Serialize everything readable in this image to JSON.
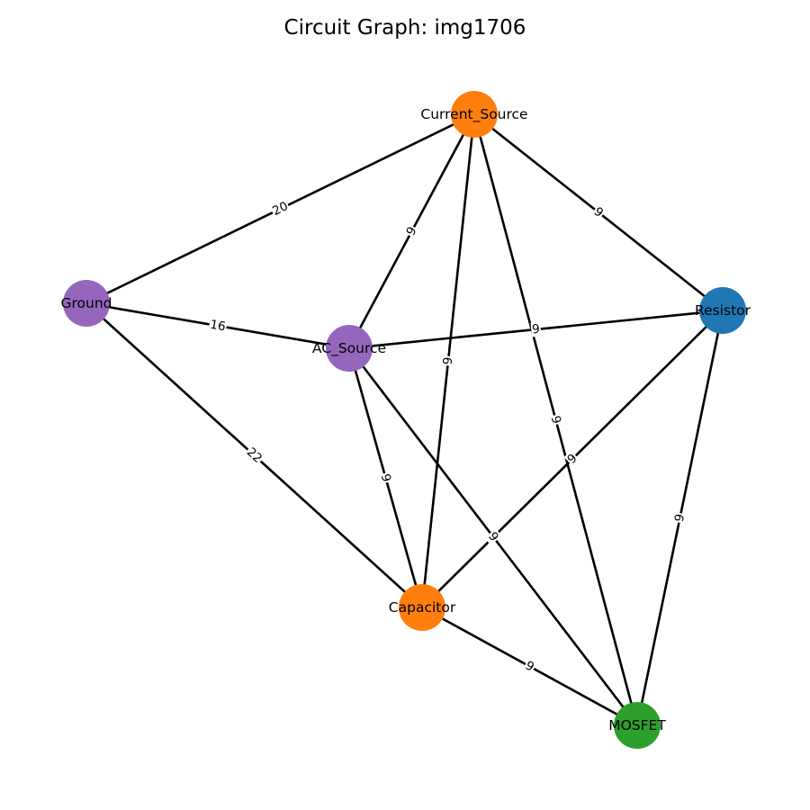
{
  "title": "Circuit Graph: img1706",
  "nodes": [
    {
      "id": "Current_Source",
      "label": "Current_Source",
      "color": "#ff7f0e"
    },
    {
      "id": "Ground",
      "label": "Ground",
      "color": "#9467bd"
    },
    {
      "id": "AC_Source",
      "label": "AC_Source",
      "color": "#9467bd"
    },
    {
      "id": "Resistor",
      "label": "Resistor",
      "color": "#1f77b4"
    },
    {
      "id": "Capacitor",
      "label": "Capacitor",
      "color": "#ff7f0e"
    },
    {
      "id": "MOSFET",
      "label": "MOSFET",
      "color": "#2ca02c"
    }
  ],
  "edges": [
    {
      "source": "Current_Source",
      "target": "Ground",
      "weight": "20"
    },
    {
      "source": "Current_Source",
      "target": "AC_Source",
      "weight": "9"
    },
    {
      "source": "Current_Source",
      "target": "Capacitor",
      "weight": "9"
    },
    {
      "source": "Current_Source",
      "target": "MOSFET",
      "weight": "9"
    },
    {
      "source": "Current_Source",
      "target": "Resistor",
      "weight": "9"
    },
    {
      "source": "Ground",
      "target": "AC_Source",
      "weight": "16"
    },
    {
      "source": "Ground",
      "target": "Capacitor",
      "weight": "22"
    },
    {
      "source": "AC_Source",
      "target": "Resistor",
      "weight": "9"
    },
    {
      "source": "AC_Source",
      "target": "Capacitor",
      "weight": "9"
    },
    {
      "source": "AC_Source",
      "target": "MOSFET",
      "weight": "9"
    },
    {
      "source": "Resistor",
      "target": "Capacitor",
      "weight": "9"
    },
    {
      "source": "Resistor",
      "target": "MOSFET",
      "weight": "9"
    },
    {
      "source": "Capacitor",
      "target": "MOSFET",
      "weight": "9"
    }
  ]
}
